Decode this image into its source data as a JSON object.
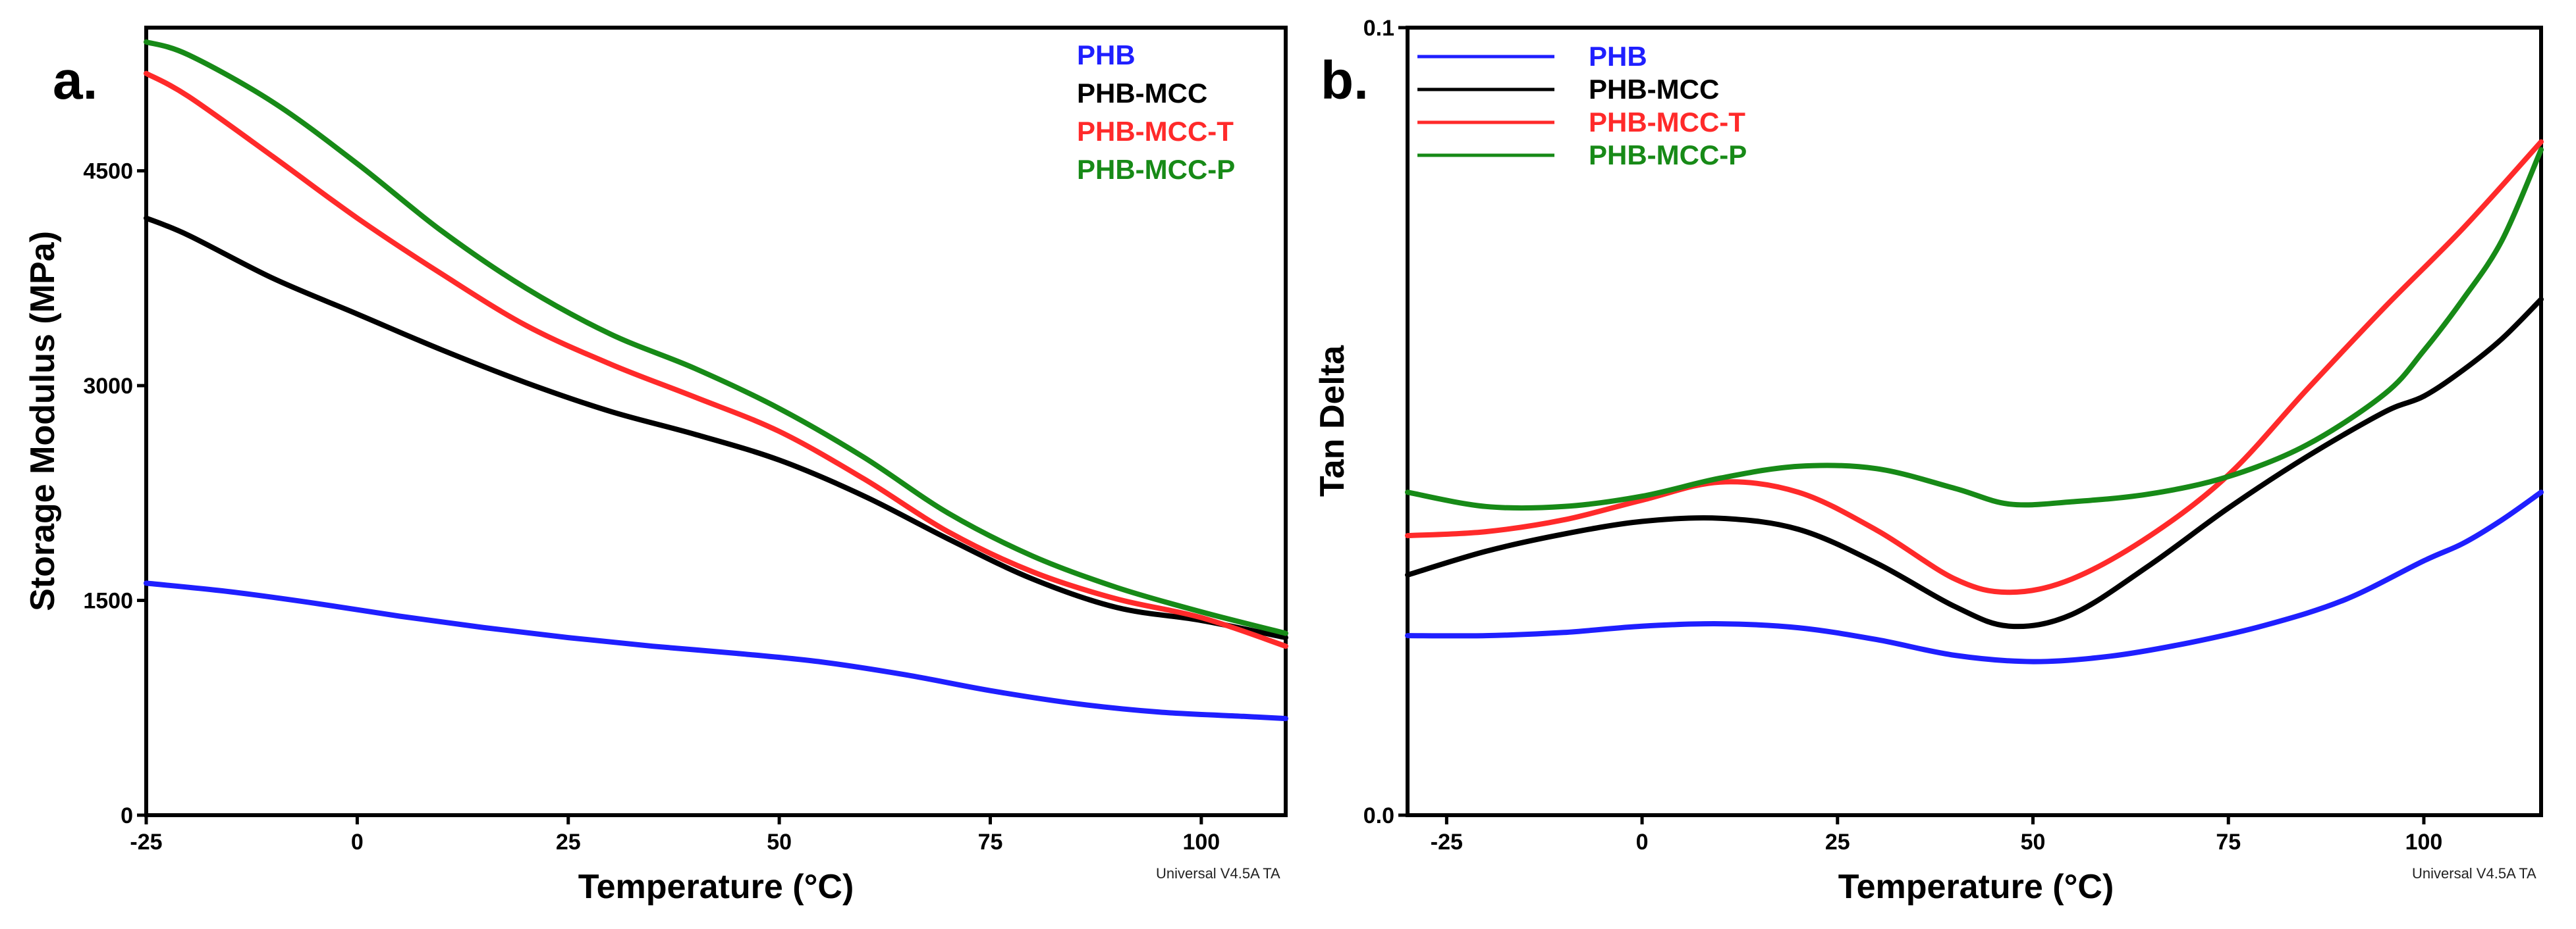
{
  "chart_data": [
    {
      "panel": "a.",
      "type": "line",
      "title": "",
      "xlabel": "Temperature (°C)",
      "ylabel": "Storage Modulus (MPa)",
      "xlim": [
        -25,
        110
      ],
      "ylim": [
        0,
        5500
      ],
      "xticks": [
        -25,
        0,
        25,
        50,
        75,
        100
      ],
      "xtick_labels": [
        "-25",
        "0",
        "25",
        "50",
        "75",
        "100"
      ],
      "yticks": [
        0,
        1500,
        3000,
        4500
      ],
      "ytick_labels": [
        "0",
        "1500",
        "3000",
        "4500"
      ],
      "legend_position": "top-right",
      "legend_style": "text-only",
      "watermark": "Universal V4.5A TA",
      "series": [
        {
          "name": "PHB",
          "color": "#1f1fff",
          "x": [
            -25,
            -15,
            -5,
            5,
            15,
            25,
            35,
            45,
            55,
            65,
            75,
            85,
            95,
            105,
            110
          ],
          "y": [
            1620,
            1560,
            1480,
            1390,
            1310,
            1240,
            1180,
            1130,
            1070,
            980,
            870,
            780,
            720,
            690,
            675
          ]
        },
        {
          "name": "PHB-MCC",
          "color": "#000000",
          "x": [
            -25,
            -20,
            -10,
            0,
            10,
            20,
            30,
            40,
            50,
            60,
            70,
            80,
            90,
            100,
            110
          ],
          "y": [
            4170,
            4050,
            3750,
            3500,
            3250,
            3020,
            2820,
            2660,
            2480,
            2230,
            1930,
            1650,
            1450,
            1360,
            1240
          ]
        },
        {
          "name": "PHB-MCC-T",
          "color": "#ff2a2a",
          "x": [
            -25,
            -20,
            -10,
            0,
            10,
            20,
            30,
            40,
            50,
            60,
            70,
            80,
            90,
            100,
            110
          ],
          "y": [
            5180,
            5020,
            4600,
            4170,
            3780,
            3420,
            3150,
            2920,
            2680,
            2350,
            1980,
            1700,
            1510,
            1380,
            1180
          ]
        },
        {
          "name": "PHB-MCC-P",
          "color": "#178a17",
          "x": [
            -25,
            -20,
            -10,
            0,
            10,
            20,
            30,
            40,
            50,
            60,
            70,
            80,
            90,
            100,
            110
          ],
          "y": [
            5400,
            5310,
            4980,
            4550,
            4080,
            3680,
            3360,
            3120,
            2840,
            2500,
            2110,
            1810,
            1590,
            1420,
            1270
          ]
        }
      ]
    },
    {
      "panel": "b.",
      "type": "line",
      "title": "",
      "xlabel": "Temperature (°C)",
      "ylabel": "Tan Delta",
      "xlim": [
        -30,
        115
      ],
      "ylim": [
        0.0,
        0.1
      ],
      "xticks": [
        -25,
        0,
        25,
        50,
        75,
        100
      ],
      "xtick_labels": [
        "-25",
        "0",
        "25",
        "50",
        "75",
        "100"
      ],
      "yticks": [
        0.0,
        0.1
      ],
      "ytick_labels": [
        "0.0",
        "0.1"
      ],
      "legend_position": "top-left",
      "legend_style": "line-and-text",
      "watermark": "Universal V4.5A TA",
      "series": [
        {
          "name": "PHB",
          "color": "#1f1fff",
          "x": [
            -30,
            -20,
            -10,
            0,
            10,
            20,
            30,
            40,
            50,
            60,
            70,
            80,
            90,
            100,
            105,
            110,
            115
          ],
          "y": [
            0.0228,
            0.0228,
            0.0232,
            0.024,
            0.0243,
            0.0238,
            0.0223,
            0.0203,
            0.0195,
            0.0202,
            0.0219,
            0.0242,
            0.0274,
            0.0323,
            0.0345,
            0.0375,
            0.041
          ]
        },
        {
          "name": "PHB-MCC",
          "color": "#000000",
          "x": [
            -30,
            -20,
            -10,
            0,
            10,
            20,
            30,
            40,
            47,
            55,
            65,
            75,
            85,
            95,
            100,
            105,
            110,
            115
          ],
          "y": [
            0.0305,
            0.0335,
            0.0357,
            0.0373,
            0.0377,
            0.0363,
            0.032,
            0.0265,
            0.024,
            0.0255,
            0.0318,
            0.039,
            0.0455,
            0.0512,
            0.0532,
            0.0565,
            0.0605,
            0.0655
          ]
        },
        {
          "name": "PHB-MCC-T",
          "color": "#ff2a2a",
          "x": [
            -30,
            -20,
            -10,
            0,
            10,
            20,
            30,
            40,
            47,
            55,
            65,
            75,
            85,
            95,
            105,
            115
          ],
          "y": [
            0.0355,
            0.036,
            0.0375,
            0.04,
            0.0423,
            0.041,
            0.0362,
            0.03,
            0.0283,
            0.03,
            0.0355,
            0.0432,
            0.054,
            0.0645,
            0.0745,
            0.0855
          ]
        },
        {
          "name": "PHB-MCC-P",
          "color": "#178a17",
          "x": [
            -30,
            -20,
            -10,
            0,
            10,
            20,
            30,
            40,
            47,
            55,
            65,
            75,
            85,
            95,
            100,
            105,
            110,
            115
          ],
          "y": [
            0.041,
            0.0392,
            0.0392,
            0.0405,
            0.0428,
            0.0443,
            0.044,
            0.0415,
            0.0395,
            0.0398,
            0.0408,
            0.043,
            0.047,
            0.0535,
            0.059,
            0.0655,
            0.073,
            0.0845
          ]
        }
      ]
    }
  ]
}
